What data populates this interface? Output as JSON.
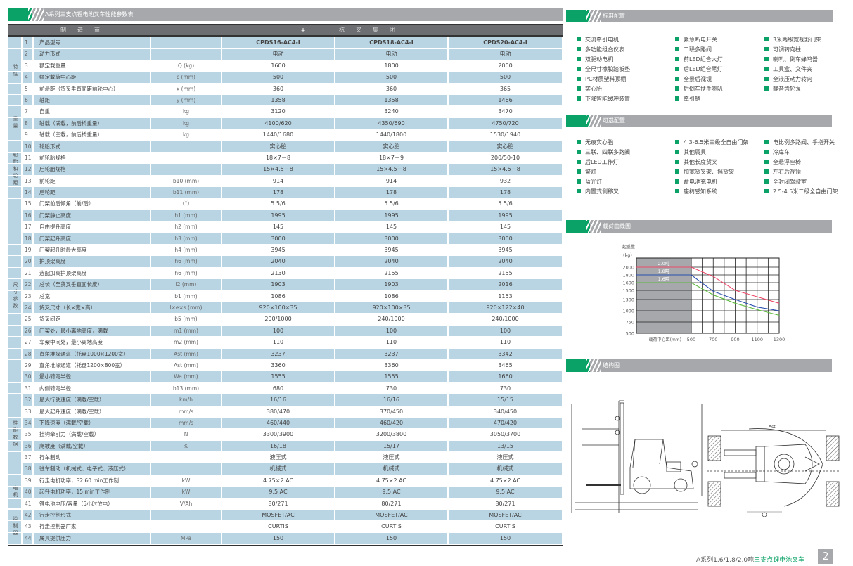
{
  "table": {
    "title": "A系列三支点锂电池叉车性能参数表",
    "manufacturer_label": "制　　造　　商",
    "manufacturer": "杭　　叉　　集　　团",
    "groups": [
      {
        "label": "特性",
        "from": 1,
        "to": 6
      },
      {
        "label": "重量",
        "from": 7,
        "to": 9
      },
      {
        "label": "轮胎和轮距",
        "from": 10,
        "to": 14
      },
      {
        "label": "尺寸参数",
        "from": 15,
        "to": 31
      },
      {
        "label": "性能数据",
        "from": 32,
        "to": 38
      },
      {
        "label": "电机",
        "from": 39,
        "to": 41
      },
      {
        "label": "控制器",
        "from": 42,
        "to": 44
      }
    ],
    "rows": [
      [
        "1",
        "产品型号",
        "",
        "CPDS16-AC4-Ⅰ",
        "CPDS18-AC4-Ⅰ",
        "CPDS20-AC4-Ⅰ"
      ],
      [
        "2",
        "动力形式",
        "",
        "电动",
        "电动",
        "电动"
      ],
      [
        "3",
        "额定载重量",
        "Q (kg)",
        "1600",
        "1800",
        "2000"
      ],
      [
        "4",
        "额定载荷中心距",
        "c (mm)",
        "500",
        "500",
        "500"
      ],
      [
        "5",
        "前悬距（货叉垂直面距前轮中心）",
        "x (mm)",
        "360",
        "360",
        "365"
      ],
      [
        "6",
        "轴距",
        "y (mm)",
        "1358",
        "1358",
        "1466"
      ],
      [
        "7",
        "自重",
        "kg",
        "3120",
        "3240",
        "3470"
      ],
      [
        "8",
        "轴载（满载，前后桥重量）",
        "kg",
        "4100/620",
        "4350/690",
        "4750/720"
      ],
      [
        "9",
        "轴载（空载，前后桥重量）",
        "kg",
        "1440/1680",
        "1440/1800",
        "1530/1940"
      ],
      [
        "10",
        "轮胎形式",
        "",
        "实心胎",
        "实心胎",
        "实心胎"
      ],
      [
        "11",
        "前轮胎规格",
        "",
        "18×7－8",
        "18×7－9",
        "200/50-10"
      ],
      [
        "12",
        "后轮胎规格",
        "",
        "15×4.5－8",
        "15×4.5－8",
        "15×4.5－8"
      ],
      [
        "13",
        "前轮距",
        "b10 (mm)",
        "914",
        "914",
        "932"
      ],
      [
        "14",
        "后轮距",
        "b11 (mm)",
        "178",
        "178",
        "178"
      ],
      [
        "15",
        "门架前后倾角（前/后）",
        "（°）",
        "5.5/6",
        "5.5/6",
        "5.5/6"
      ],
      [
        "16",
        "门架静止高度",
        "h1 (mm)",
        "1995",
        "1995",
        "1995"
      ],
      [
        "17",
        "自由提升高度",
        "h2 (mm)",
        "145",
        "145",
        "145"
      ],
      [
        "18",
        "门架起升高度",
        "h3 (mm)",
        "3000",
        "3000",
        "3000"
      ],
      [
        "19",
        "门架起升时最大高度",
        "h4 (mm)",
        "3945",
        "3945",
        "3945"
      ],
      [
        "20",
        "护顶架高度",
        "h6 (mm)",
        "2040",
        "2040",
        "2040"
      ],
      [
        "21",
        "选配加高护顶架高度",
        "h6 (mm)",
        "2130",
        "2155",
        "2155"
      ],
      [
        "22",
        "总长（至货叉垂直面长度）",
        "l2 (mm)",
        "1903",
        "1903",
        "2016"
      ],
      [
        "23",
        "总宽",
        "b1 (mm)",
        "1086",
        "1086",
        "1153"
      ],
      [
        "24",
        "货叉尺寸（长×宽×高）",
        "l×e×s (mm)",
        "920×100×35",
        "920×100×35",
        "920×122×40"
      ],
      [
        "25",
        "货叉间距",
        "b5 (mm)",
        "200/1000",
        "240/1000",
        "240/1000"
      ],
      [
        "26",
        "门架处，最小离地高度，满载",
        "m1 (mm)",
        "100",
        "100",
        "100"
      ],
      [
        "27",
        "车架中间处，最小离地高度",
        "m2 (mm)",
        "110",
        "110",
        "110"
      ],
      [
        "28",
        "直角堆垛通道（托盘1000×1200宽）",
        "Ast (mm)",
        "3237",
        "3237",
        "3342"
      ],
      [
        "29",
        "直角堆垛通道（托盘1200×800宽）",
        "Ast (mm)",
        "3360",
        "3360",
        "3465"
      ],
      [
        "30",
        "最小转弯半径",
        "Wa (mm)",
        "1555",
        "1555",
        "1660"
      ],
      [
        "31",
        "内侧转弯半径",
        "b13 (mm)",
        "680",
        "730",
        "730"
      ],
      [
        "32",
        "最大行驶速度（满载/空载）",
        "km/h",
        "16/16",
        "16/16",
        "15/15"
      ],
      [
        "33",
        "最大起升速度（满载/空载）",
        "mm/s",
        "380/470",
        "370/450",
        "340/450"
      ],
      [
        "34",
        "下降速度（满载/空载）",
        "mm/s",
        "460/440",
        "460/420",
        "470/420"
      ],
      [
        "35",
        "挂钩牵引力（满载/空载）",
        "N",
        "3300/3900",
        "3200/3800",
        "3050/3700"
      ],
      [
        "36",
        "爬坡度（满载/空载）",
        "%",
        "16/18",
        "15/17",
        "13/15"
      ],
      [
        "37",
        "行车制动",
        "",
        "液压式",
        "液压式",
        "液压式"
      ],
      [
        "38",
        "驻车制动（机械式、电子式、液压式）",
        "",
        "机械式",
        "机械式",
        "机械式"
      ],
      [
        "39",
        "行走电机功率，S2 60 min工作制",
        "kW",
        "4.75×2 AC",
        "4.75×2 AC",
        "4.75×2 AC"
      ],
      [
        "40",
        "起升电机功率，15 min工作制",
        "kW",
        "9.5 AC",
        "9.5 AC",
        "9.5 AC"
      ],
      [
        "41",
        "锂电池电压/容量（5小时放电）",
        "V/Ah",
        "80/271",
        "80/271",
        "80/271"
      ],
      [
        "42",
        "行走控制形式",
        "",
        "MOSFET/AC",
        "MOSFET/AC",
        "MOSFET/AC"
      ],
      [
        "43",
        "行走控制器厂家",
        "",
        "CURTIS",
        "CURTIS",
        "CURTIS"
      ],
      [
        "44",
        "属具提供压力",
        "MPa",
        "150",
        "150",
        "150"
      ]
    ]
  },
  "standard": {
    "title": "标准配置",
    "columns": [
      [
        "交流牵引电机",
        "多功能组合仪表",
        "双驱动电机",
        "全尺寸橡胶踏板垫",
        "PC材质塑料顶棚",
        "实心胎",
        "下降智能缓冲装置"
      ],
      [
        "紧急断电开关",
        "二联多路阀",
        "前LED组合大灯",
        "后LED组合尾灯",
        "全景后视镜",
        "后倒车扶手喇叭",
        "牵引销"
      ],
      [
        "3米两级宽视野门架",
        "可调转向柱",
        "喇叭、倒车蜂鸣器",
        "工具盒、文件夹",
        "全液压动力转向",
        "静音齿轮泵"
      ]
    ]
  },
  "optional": {
    "title": "可选配置",
    "columns": [
      [
        "无痕实心胎",
        "三联、四联多路阀",
        "后LED工作灯",
        "警灯",
        "蓝光灯",
        "内置式侧移叉"
      ],
      [
        "4.3-6.5米三级全自由门架",
        "其他属具",
        "其他长度货叉",
        "加宽货叉架、挡货架",
        "蓄电池充电机",
        "座椅感知系统"
      ],
      [
        "电比例多路阀、手指开关",
        "冷库车",
        "全悬浮座椅",
        "左右后视镜",
        "全封闭驾驶室",
        "2.5-4.5米二级全自由门架"
      ]
    ]
  },
  "load_chart": {
    "title": "载荷曲线图",
    "chart_data": {
      "type": "line",
      "ylabel": "起重量",
      "yunit": "（kg）",
      "xlabel": "载荷中心距(mm)",
      "yticks": [
        500,
        750,
        1000,
        1300,
        1500,
        1600,
        1800,
        2000
      ],
      "xticks": [
        500,
        700,
        900,
        1100,
        1300
      ],
      "xlim": [
        500,
        1300
      ],
      "grid": true,
      "series": [
        {
          "name": "2.0吨",
          "color": "#ee4a6a",
          "x": [
            500,
            700,
            900,
            1100,
            1300
          ],
          "y": [
            2000,
            1760,
            1500,
            1360,
            1200
          ]
        },
        {
          "name": "1.8吨",
          "color": "#2a4fb0",
          "x": [
            500,
            700,
            900,
            1100,
            1300
          ],
          "y": [
            1800,
            1480,
            1300,
            1100,
            1000
          ]
        },
        {
          "name": "1.6吨",
          "color": "#5cba3c",
          "x": [
            500,
            700,
            900,
            1100,
            1300
          ],
          "y": [
            1600,
            1400,
            1200,
            1030,
            900
          ]
        }
      ]
    }
  },
  "structure": {
    "title": "结构图",
    "ast_label": "Ast"
  },
  "footer": {
    "prefix": "A系列1.6/1.8/2.0吨",
    "highlight": "三支点锂电池叉车",
    "page": "2"
  },
  "colors": {
    "accent": "#0aa266",
    "row_shade": "#b9d5e3",
    "header_gray": "#6d6e71",
    "bar_gray": "#a6a8ab"
  }
}
